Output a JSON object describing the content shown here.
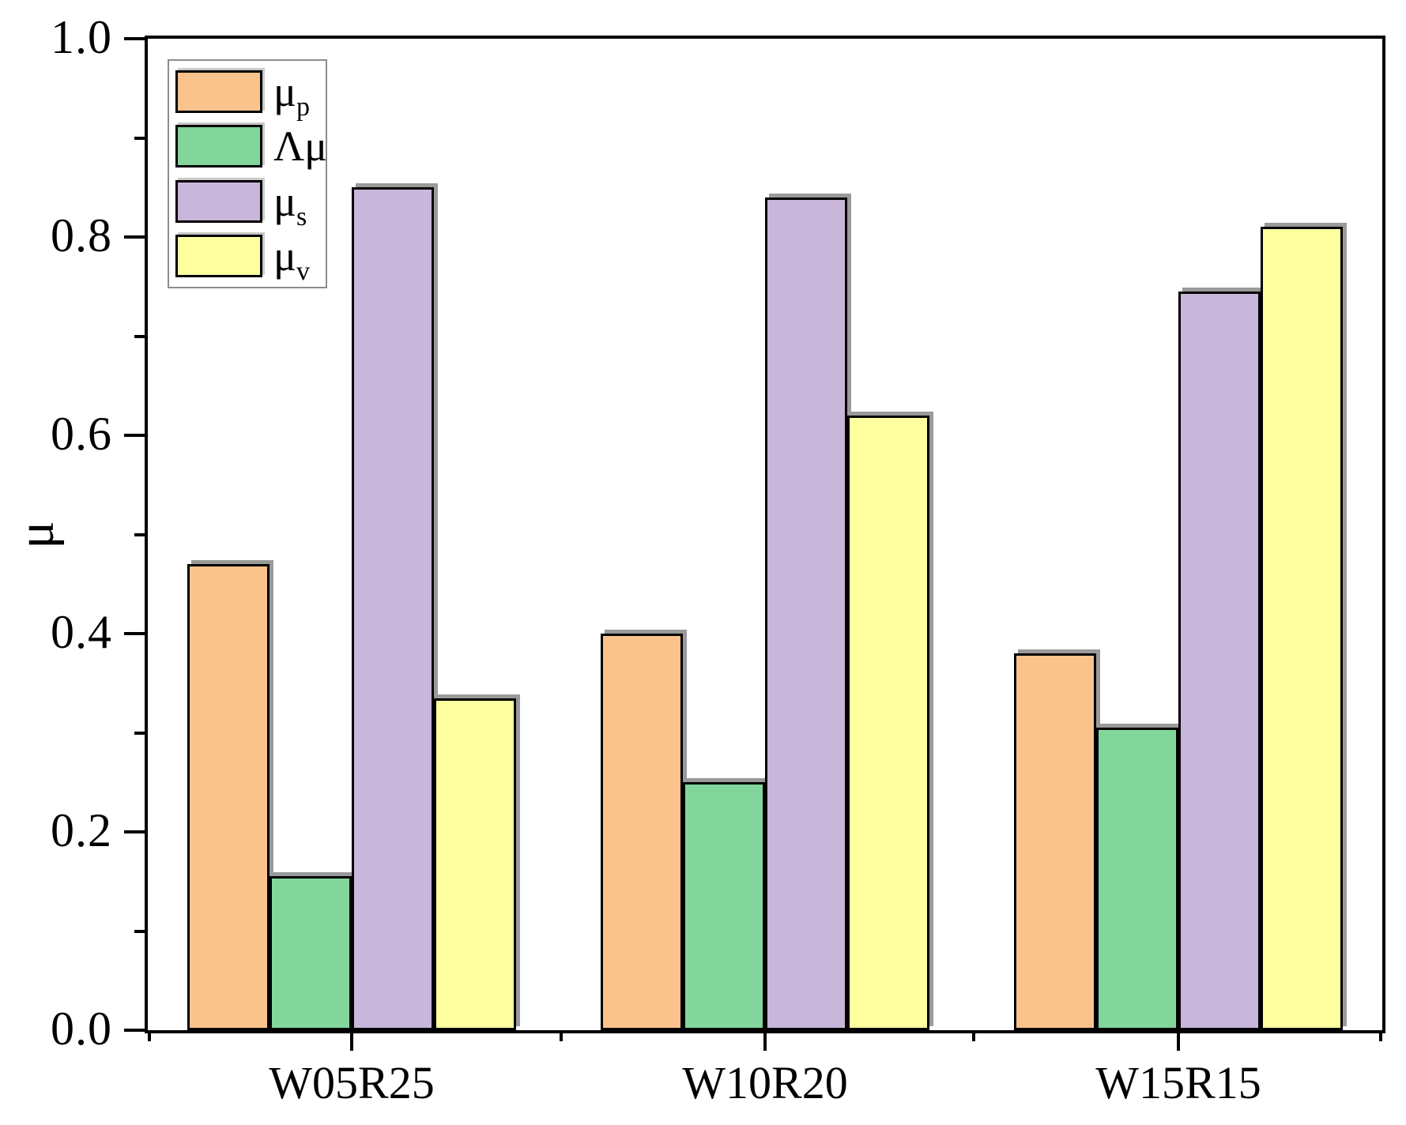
{
  "figure": {
    "y_axis_title": "μ"
  },
  "chart_data": {
    "type": "bar",
    "title": "",
    "xlabel": "",
    "ylabel": "μ",
    "ylim": [
      0.0,
      1.0
    ],
    "ytick_step": 0.2,
    "yminor_step": 0.1,
    "ytick_labels": [
      "0.0",
      "0.2",
      "0.4",
      "0.6",
      "0.8",
      "1.0"
    ],
    "grid": false,
    "legend_position": "upper-left",
    "categories": [
      "W05R25",
      "W10R20",
      "W15R15"
    ],
    "series": [
      {
        "name": "μp",
        "label_base": "μ",
        "label_sub": "p",
        "color": "#FAC38C",
        "values": [
          0.47,
          0.4,
          0.38
        ]
      },
      {
        "name": "Λμ",
        "label_base": "Λμ",
        "label_sub": "",
        "color": "#82D69B",
        "values": [
          0.155,
          0.25,
          0.305
        ]
      },
      {
        "name": "μs",
        "label_base": "μ",
        "label_sub": "s",
        "color": "#C9B6DB",
        "values": [
          0.85,
          0.84,
          0.745
        ]
      },
      {
        "name": "μv",
        "label_base": "μ",
        "label_sub": "v",
        "color": "#FEFF9E",
        "values": [
          0.335,
          0.62,
          0.81
        ]
      }
    ],
    "colors": {
      "bar_border": "#000000",
      "bar_shadow": "#9a9a9a",
      "axis": "#000000",
      "legend_border": "#8c8c8c"
    }
  }
}
